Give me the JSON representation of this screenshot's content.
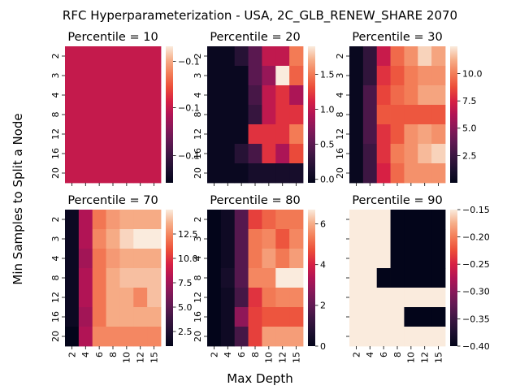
{
  "figure": {
    "suptitle": "RFC Hyperparameterization - USA, 2C_GLB_RENEW_SHARE 2070",
    "xlabel": "Max Depth",
    "ylabel": "Min Samples to Split a Node"
  },
  "chart_data": [
    {
      "type": "heatmap",
      "title": "Percentile = 10",
      "x": [
        "2",
        "4",
        "6",
        "8",
        "10",
        "12",
        "15"
      ],
      "y": [
        "2",
        "3",
        "4",
        "8",
        "12",
        "16",
        "20"
      ],
      "vmin": -0.11,
      "vmax": -0.09,
      "uniform": true,
      "colorbar_ticks": [
        {
          "label": "−0.1",
          "frac": 0.89
        },
        {
          "label": "−0.1",
          "frac": 0.55
        },
        {
          "label": "−0.1",
          "frac": 0.2
        }
      ],
      "values": [
        [
          -0.1,
          -0.1,
          -0.1,
          -0.1,
          -0.1,
          -0.1,
          -0.1
        ],
        [
          -0.1,
          -0.1,
          -0.1,
          -0.1,
          -0.1,
          -0.1,
          -0.1
        ],
        [
          -0.1,
          -0.1,
          -0.1,
          -0.1,
          -0.1,
          -0.1,
          -0.1
        ],
        [
          -0.1,
          -0.1,
          -0.1,
          -0.1,
          -0.1,
          -0.1,
          -0.1
        ],
        [
          -0.1,
          -0.1,
          -0.1,
          -0.1,
          -0.1,
          -0.1,
          -0.1
        ],
        [
          -0.1,
          -0.1,
          -0.1,
          -0.1,
          -0.1,
          -0.1,
          -0.1
        ],
        [
          -0.1,
          -0.1,
          -0.1,
          -0.1,
          -0.1,
          -0.1,
          -0.1
        ]
      ]
    },
    {
      "type": "heatmap",
      "title": "Percentile = 20",
      "x": [
        "2",
        "4",
        "6",
        "8",
        "10",
        "12",
        "15"
      ],
      "y": [
        "2",
        "3",
        "4",
        "8",
        "12",
        "16",
        "20"
      ],
      "vmin": -0.05,
      "vmax": 1.9,
      "colorbar_ticks": [
        {
          "label": "0.0",
          "value": 0.0
        },
        {
          "label": "0.5",
          "value": 0.5
        },
        {
          "label": "1.0",
          "value": 1.0
        },
        {
          "label": "1.5",
          "value": 1.5
        }
      ],
      "values": [
        [
          0.0,
          0.0,
          0.2,
          0.5,
          1.0,
          1.0,
          1.5
        ],
        [
          0.0,
          0.0,
          0.0,
          0.5,
          0.8,
          1.9,
          1.4
        ],
        [
          0.0,
          0.0,
          0.0,
          0.4,
          1.0,
          1.2,
          0.9
        ],
        [
          0.0,
          0.0,
          0.0,
          0.3,
          1.0,
          1.2,
          1.2
        ],
        [
          0.0,
          0.0,
          0.0,
          1.2,
          1.2,
          1.2,
          1.5
        ],
        [
          0.0,
          0.0,
          0.2,
          0.4,
          1.2,
          0.9,
          1.3
        ],
        [
          0.0,
          0.0,
          0.0,
          0.1,
          0.1,
          0.1,
          0.1
        ]
      ]
    },
    {
      "type": "heatmap",
      "title": "Percentile = 30",
      "x": [
        "2",
        "4",
        "6",
        "8",
        "10",
        "12",
        "15"
      ],
      "y": [
        "2",
        "3",
        "4",
        "8",
        "12",
        "16",
        "20"
      ],
      "vmin": 0,
      "vmax": 12.5,
      "colorbar_ticks": [
        {
          "label": "2.5",
          "value": 2.5
        },
        {
          "label": "5.0",
          "value": 5.0
        },
        {
          "label": "7.5",
          "value": 7.5
        },
        {
          "label": "10.0",
          "value": 10.0
        }
      ],
      "values": [
        [
          0.3,
          2.0,
          7.0,
          9.5,
          10.5,
          12.0,
          11.0
        ],
        [
          0.3,
          2.0,
          8.0,
          9.0,
          10.0,
          10.5,
          10.5
        ],
        [
          0.3,
          3.0,
          8.5,
          9.5,
          10.0,
          11.0,
          11.0
        ],
        [
          0.3,
          3.0,
          9.0,
          9.0,
          9.0,
          9.0,
          9.0
        ],
        [
          0.3,
          3.0,
          8.0,
          9.0,
          10.5,
          11.0,
          10.5
        ],
        [
          0.3,
          2.5,
          8.0,
          10.0,
          10.5,
          11.5,
          12.0
        ],
        [
          0.3,
          2.5,
          7.5,
          9.5,
          10.5,
          10.5,
          10.5
        ]
      ]
    },
    {
      "type": "heatmap",
      "title": "Percentile = 70",
      "x": [
        "2",
        "4",
        "6",
        "8",
        "10",
        "12",
        "15"
      ],
      "y": [
        "2",
        "3",
        "4",
        "8",
        "12",
        "16",
        "20"
      ],
      "vmin": 1.0,
      "vmax": 15.0,
      "colorbar_ticks": [
        {
          "label": "2.5",
          "value": 2.5
        },
        {
          "label": "5.0",
          "value": 5.0
        },
        {
          "label": "7.5",
          "value": 7.5
        },
        {
          "label": "10.0",
          "value": 10.0
        },
        {
          "label": "12.5",
          "value": 12.5
        }
      ],
      "values": [
        [
          1.5,
          8.0,
          12.0,
          13.0,
          13.5,
          13.5,
          13.5
        ],
        [
          1.5,
          8.0,
          12.5,
          13.5,
          14.5,
          15.0,
          15.0
        ],
        [
          1.5,
          7.5,
          12.0,
          13.0,
          13.5,
          13.5,
          13.5
        ],
        [
          1.5,
          8.0,
          12.0,
          13.5,
          14.0,
          14.0,
          14.0
        ],
        [
          1.5,
          8.0,
          12.0,
          13.5,
          13.5,
          12.5,
          14.0
        ],
        [
          1.5,
          7.5,
          12.0,
          13.5,
          13.5,
          13.5,
          13.5
        ],
        [
          1.0,
          8.0,
          12.5,
          12.5,
          12.5,
          12.5,
          12.5
        ]
      ]
    },
    {
      "type": "heatmap",
      "title": "Percentile = 80",
      "x": [
        "2",
        "4",
        "6",
        "8",
        "10",
        "12",
        "15"
      ],
      "y": [
        "2",
        "3",
        "4",
        "8",
        "12",
        "16",
        "20"
      ],
      "vmin": 0,
      "vmax": 6.7,
      "colorbar_ticks": [
        {
          "label": "0",
          "value": 0
        },
        {
          "label": "2",
          "value": 2
        },
        {
          "label": "4",
          "value": 4
        },
        {
          "label": "6",
          "value": 6
        }
      ],
      "values": [
        [
          0.0,
          0.3,
          1.8,
          4.5,
          5.0,
          5.3,
          5.3
        ],
        [
          0.0,
          0.3,
          1.8,
          5.3,
          5.5,
          4.8,
          5.5
        ],
        [
          0.0,
          0.3,
          1.8,
          5.3,
          5.8,
          5.3,
          5.8
        ],
        [
          0.0,
          0.5,
          1.8,
          5.5,
          5.5,
          6.7,
          6.7
        ],
        [
          0.0,
          0.3,
          1.5,
          4.3,
          5.3,
          5.5,
          5.5
        ],
        [
          0.0,
          0.3,
          2.8,
          4.5,
          4.8,
          4.8,
          4.8
        ],
        [
          0.0,
          0.3,
          1.5,
          4.5,
          5.8,
          5.8,
          5.8
        ]
      ]
    },
    {
      "type": "heatmap",
      "title": "Percentile = 90",
      "x": [
        "2",
        "4",
        "6",
        "8",
        "10",
        "12",
        "15"
      ],
      "y": [
        "2",
        "3",
        "4",
        "8",
        "12",
        "16",
        "20"
      ],
      "vmin": -0.4,
      "vmax": -0.15,
      "colorbar_ticks": [
        {
          "label": "−0.40",
          "value": -0.4
        },
        {
          "label": "−0.35",
          "value": -0.35
        },
        {
          "label": "−0.30",
          "value": -0.3
        },
        {
          "label": "−0.25",
          "value": -0.25
        },
        {
          "label": "−0.20",
          "value": -0.2
        },
        {
          "label": "−0.15",
          "value": -0.15
        }
      ],
      "hide_yticklabels": true,
      "values": [
        [
          -0.15,
          -0.15,
          -0.15,
          -0.4,
          -0.4,
          -0.4,
          -0.4
        ],
        [
          -0.15,
          -0.15,
          -0.15,
          -0.4,
          -0.4,
          -0.4,
          -0.4
        ],
        [
          -0.15,
          -0.15,
          -0.15,
          -0.4,
          -0.4,
          -0.4,
          -0.4
        ],
        [
          -0.15,
          -0.15,
          -0.4,
          -0.4,
          -0.4,
          -0.4,
          -0.4
        ],
        [
          -0.15,
          -0.15,
          -0.15,
          -0.15,
          -0.15,
          -0.15,
          -0.15
        ],
        [
          -0.15,
          -0.15,
          -0.15,
          -0.15,
          -0.4,
          -0.4,
          -0.4
        ],
        [
          -0.15,
          -0.15,
          -0.15,
          -0.15,
          -0.15,
          -0.15,
          -0.15
        ]
      ]
    }
  ]
}
